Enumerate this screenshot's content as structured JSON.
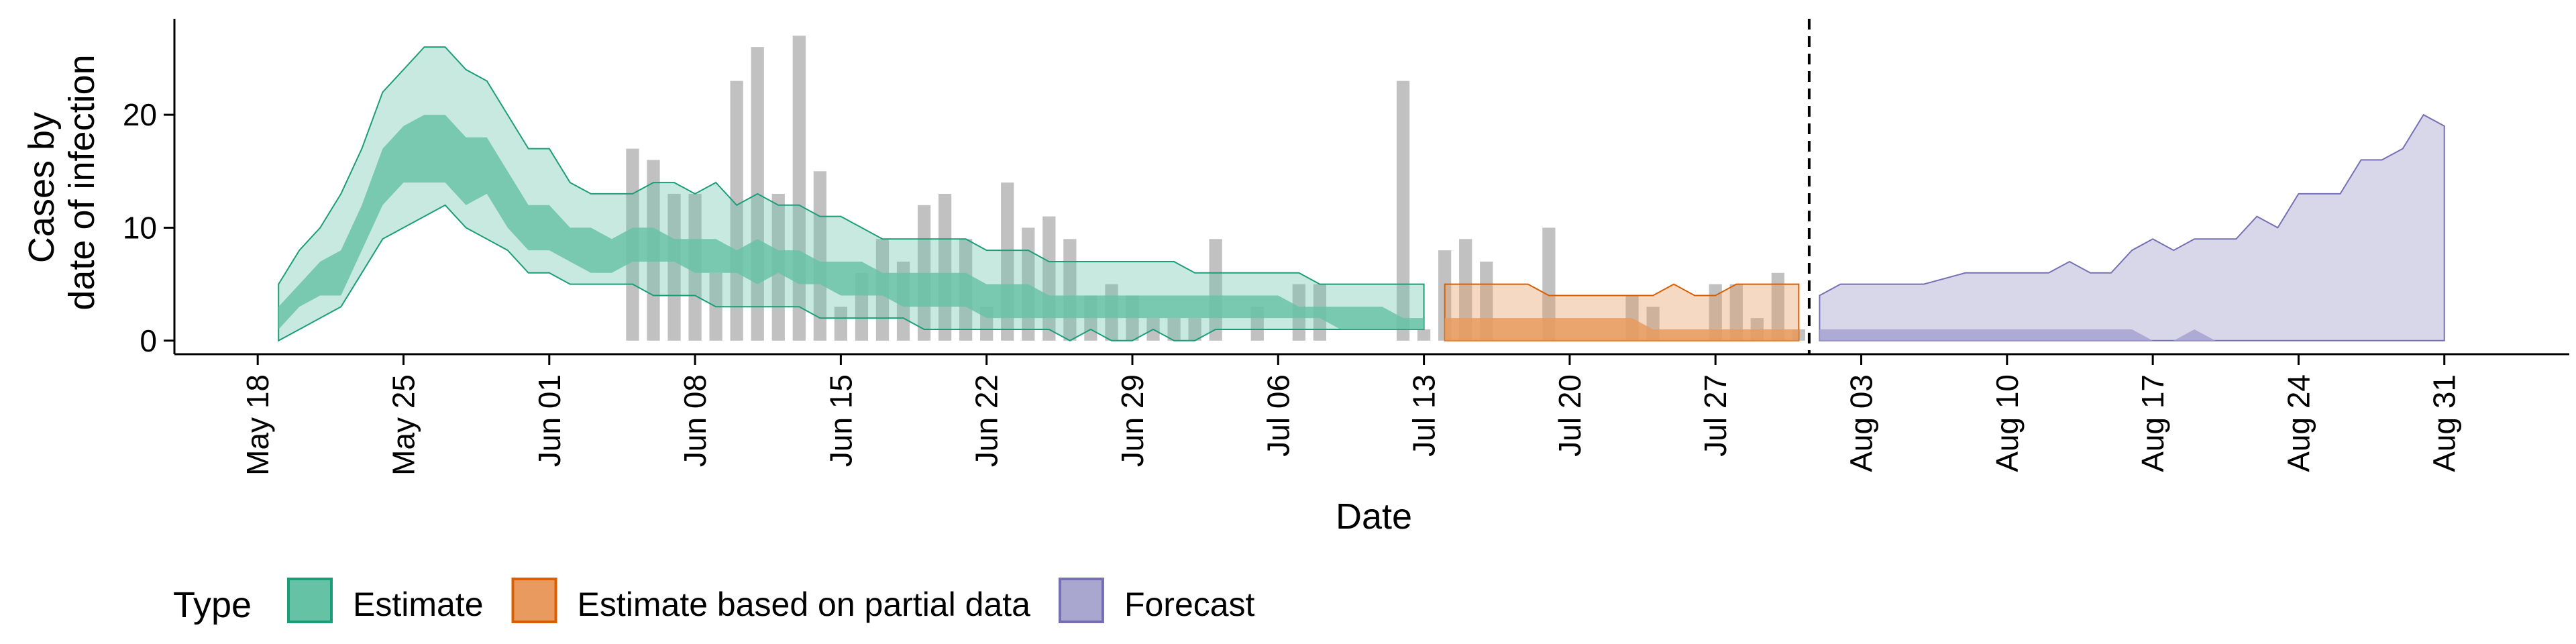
{
  "chart_data": {
    "type": "area",
    "xlabel": "Date",
    "ylabel_lines": [
      "Cases by",
      "date of infection"
    ],
    "start_date": "2020-05-18",
    "x_tick_labels": [
      "May 18",
      "May 25",
      "Jun 01",
      "Jun 08",
      "Jun 15",
      "Jun 22",
      "Jun 29",
      "Jul 06",
      "Jul 13",
      "Jul 20",
      "Jul 27",
      "Aug 03",
      "Aug 10",
      "Aug 17",
      "Aug 24",
      "Aug 31"
    ],
    "x_tick_dates": [
      "2020-05-18",
      "2020-05-25",
      "2020-06-01",
      "2020-06-08",
      "2020-06-15",
      "2020-06-22",
      "2020-06-29",
      "2020-07-06",
      "2020-07-13",
      "2020-07-20",
      "2020-07-27",
      "2020-08-03",
      "2020-08-10",
      "2020-08-17",
      "2020-08-24",
      "2020-08-31"
    ],
    "y_ticks": [
      0,
      10,
      20
    ],
    "ylim": [
      -1.2,
      28.5
    ],
    "xlim": [
      "2020-05-14",
      "2020-09-06"
    ],
    "forecast_date": "2020-08-01",
    "legend": {
      "title": "Type",
      "position": "bottom",
      "entries": [
        {
          "label": "Estimate",
          "fill": "#66C2A5",
          "stroke": "#1B9E77"
        },
        {
          "label": "Estimate based on partial data",
          "fill": "#E89A5F",
          "stroke": "#D95F02"
        },
        {
          "label": "Forecast",
          "fill": "#A9A6D0",
          "stroke": "#7570B3"
        }
      ]
    },
    "colors": {
      "cases": "#BEBEBE",
      "estimate": "#66C2A5",
      "partial": "#E89A5F",
      "forecast": "#A9A6D0",
      "estimate_line": "#1B9E77",
      "partial_line": "#D95F02",
      "forecast_line": "#7570B3"
    },
    "cases": [
      {
        "date": "2020-06-05",
        "value": 17
      },
      {
        "date": "2020-06-06",
        "value": 16
      },
      {
        "date": "2020-06-07",
        "value": 13
      },
      {
        "date": "2020-06-08",
        "value": 13
      },
      {
        "date": "2020-06-09",
        "value": 6
      },
      {
        "date": "2020-06-10",
        "value": 23
      },
      {
        "date": "2020-06-11",
        "value": 26
      },
      {
        "date": "2020-06-12",
        "value": 13
      },
      {
        "date": "2020-06-13",
        "value": 27
      },
      {
        "date": "2020-06-14",
        "value": 15
      },
      {
        "date": "2020-06-15",
        "value": 3
      },
      {
        "date": "2020-06-16",
        "value": 6
      },
      {
        "date": "2020-06-17",
        "value": 9
      },
      {
        "date": "2020-06-18",
        "value": 7
      },
      {
        "date": "2020-06-19",
        "value": 12
      },
      {
        "date": "2020-06-20",
        "value": 13
      },
      {
        "date": "2020-06-21",
        "value": 9
      },
      {
        "date": "2020-06-22",
        "value": 3
      },
      {
        "date": "2020-06-23",
        "value": 14
      },
      {
        "date": "2020-06-24",
        "value": 10
      },
      {
        "date": "2020-06-25",
        "value": 11
      },
      {
        "date": "2020-06-26",
        "value": 9
      },
      {
        "date": "2020-06-27",
        "value": 4
      },
      {
        "date": "2020-06-28",
        "value": 5
      },
      {
        "date": "2020-06-29",
        "value": 4
      },
      {
        "date": "2020-06-30",
        "value": 2
      },
      {
        "date": "2020-07-01",
        "value": 2
      },
      {
        "date": "2020-07-02",
        "value": 2
      },
      {
        "date": "2020-07-03",
        "value": 9
      },
      {
        "date": "2020-07-05",
        "value": 3
      },
      {
        "date": "2020-07-07",
        "value": 5
      },
      {
        "date": "2020-07-08",
        "value": 5
      },
      {
        "date": "2020-07-12",
        "value": 23
      },
      {
        "date": "2020-07-13",
        "value": 1
      },
      {
        "date": "2020-07-14",
        "value": 8
      },
      {
        "date": "2020-07-15",
        "value": 9
      },
      {
        "date": "2020-07-16",
        "value": 7
      },
      {
        "date": "2020-07-19",
        "value": 10
      },
      {
        "date": "2020-07-23",
        "value": 4
      },
      {
        "date": "2020-07-24",
        "value": 3
      },
      {
        "date": "2020-07-27",
        "value": 5
      },
      {
        "date": "2020-07-28",
        "value": 5
      },
      {
        "date": "2020-07-29",
        "value": 2
      },
      {
        "date": "2020-07-30",
        "value": 6
      },
      {
        "date": "2020-07-31",
        "value": 1
      }
    ],
    "series": [
      {
        "name": "Estimate",
        "start_date": "2020-05-19",
        "outer_lower": [
          0,
          1,
          2,
          3,
          6,
          9,
          10,
          11,
          12,
          10,
          9,
          8,
          6,
          6,
          5,
          5,
          5,
          5,
          4,
          4,
          4,
          3,
          3,
          3,
          3,
          3,
          2,
          2,
          2,
          2,
          2,
          1,
          1,
          1,
          1,
          1,
          1,
          1,
          0,
          1,
          0,
          0,
          1,
          0,
          0,
          1,
          1,
          1,
          1,
          1,
          1,
          1,
          1,
          1,
          1,
          1
        ],
        "inner_lower": [
          1,
          3,
          4,
          4,
          8,
          12,
          14,
          14,
          14,
          12,
          13,
          10,
          8,
          8,
          7,
          6,
          6,
          7,
          7,
          7,
          6,
          6,
          6,
          5,
          6,
          5,
          5,
          4,
          4,
          4,
          3,
          3,
          3,
          3,
          2,
          2,
          2,
          2,
          2,
          2,
          2,
          2,
          2,
          2,
          2,
          2,
          2,
          2,
          2,
          2,
          2,
          1,
          1,
          1,
          1,
          1
        ],
        "inner_upper": [
          3,
          5,
          7,
          8,
          12,
          17,
          19,
          20,
          20,
          18,
          18,
          15,
          12,
          12,
          10,
          10,
          9,
          10,
          10,
          9,
          9,
          9,
          8,
          9,
          8,
          8,
          7,
          7,
          7,
          6,
          6,
          6,
          6,
          6,
          5,
          5,
          5,
          4,
          4,
          4,
          4,
          4,
          4,
          4,
          4,
          4,
          4,
          4,
          4,
          3,
          3,
          3,
          3,
          3,
          2,
          2
        ],
        "outer_upper": [
          5,
          8,
          10,
          13,
          17,
          22,
          24,
          26,
          26,
          24,
          23,
          20,
          17,
          17,
          14,
          13,
          13,
          13,
          14,
          14,
          13,
          14,
          12,
          13,
          12,
          12,
          11,
          11,
          10,
          9,
          9,
          9,
          9,
          9,
          8,
          8,
          8,
          7,
          7,
          7,
          7,
          7,
          7,
          7,
          6,
          6,
          6,
          6,
          6,
          6,
          5,
          5,
          5,
          5,
          5,
          5
        ]
      },
      {
        "name": "Estimate based on partial data",
        "start_date": "2020-07-14",
        "outer_lower": [
          0,
          0,
          0,
          0,
          0,
          0,
          0,
          0,
          0,
          0,
          0,
          0,
          0,
          0,
          0,
          0,
          0,
          0
        ],
        "inner_lower": [
          0,
          0,
          0,
          0,
          0,
          0,
          0,
          0,
          0,
          0,
          0,
          0,
          0,
          0,
          0,
          0,
          0,
          0
        ],
        "inner_upper": [
          2,
          2,
          2,
          2,
          2,
          2,
          2,
          2,
          2,
          2,
          1,
          1,
          1,
          1,
          1,
          1,
          1,
          1
        ],
        "outer_upper": [
          5,
          5,
          5,
          5,
          5,
          4,
          4,
          4,
          4,
          4,
          4,
          5,
          4,
          4,
          5,
          5,
          5,
          5
        ]
      },
      {
        "name": "Forecast",
        "points": [
          {
            "date": "2020-08-01",
            "upper": 4,
            "inner": 1
          },
          {
            "date": "2020-08-02",
            "upper": 5,
            "inner": 1
          },
          {
            "date": "2020-08-06",
            "upper": 5,
            "inner": 1
          },
          {
            "date": "2020-08-08",
            "upper": 6,
            "inner": 1
          },
          {
            "date": "2020-08-12",
            "upper": 6,
            "inner": 1
          },
          {
            "date": "2020-08-13",
            "upper": 7,
            "inner": 1
          },
          {
            "date": "2020-08-14",
            "upper": 6,
            "inner": 1
          },
          {
            "date": "2020-08-15",
            "upper": 6,
            "inner": 1
          },
          {
            "date": "2020-08-16",
            "upper": 8,
            "inner": 1
          },
          {
            "date": "2020-08-17",
            "upper": 9,
            "inner": 0
          },
          {
            "date": "2020-08-18",
            "upper": 8,
            "inner": 0
          },
          {
            "date": "2020-08-19",
            "upper": 9,
            "inner": 1
          },
          {
            "date": "2020-08-20",
            "upper": 9,
            "inner": 0
          },
          {
            "date": "2020-08-21",
            "upper": 9,
            "inner": 0
          },
          {
            "date": "2020-08-22",
            "upper": 11,
            "inner": 0
          },
          {
            "date": "2020-08-23",
            "upper": 10,
            "inner": 0
          },
          {
            "date": "2020-08-24",
            "upper": 13,
            "inner": 0
          },
          {
            "date": "2020-08-26",
            "upper": 13,
            "inner": 0
          },
          {
            "date": "2020-08-27",
            "upper": 16,
            "inner": 0
          },
          {
            "date": "2020-08-28",
            "upper": 16,
            "inner": 0
          },
          {
            "date": "2020-08-29",
            "upper": 17,
            "inner": 0
          },
          {
            "date": "2020-08-30",
            "upper": 20,
            "inner": 0
          },
          {
            "date": "2020-08-31",
            "upper": 19,
            "inner": 0
          }
        ]
      }
    ]
  }
}
